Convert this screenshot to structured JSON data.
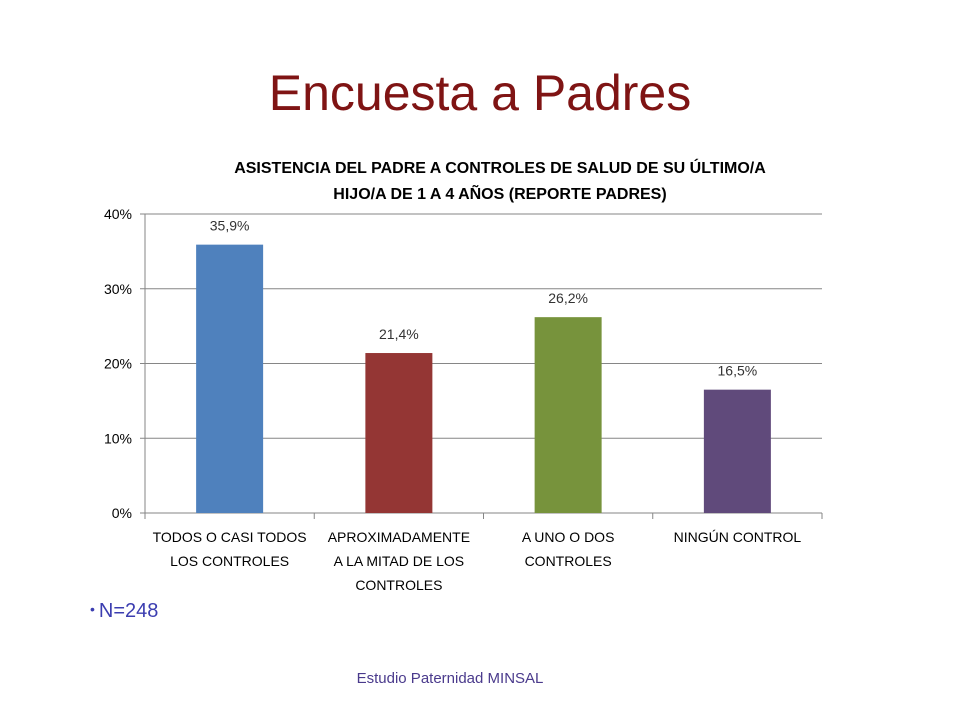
{
  "slide": {
    "title": "Encuesta a Padres",
    "bullet": "N=248",
    "footer": "Estudio Paternidad MINSAL"
  },
  "chart_data": {
    "type": "bar",
    "title_lines": [
      "ASISTENCIA DEL PADRE A CONTROLES DE SALUD DE SU ÚLTIMO/A",
      "HIJO/A  DE 1 A 4 AÑOS (REPORTE PADRES)"
    ],
    "categories": [
      [
        "TODOS O CASI TODOS",
        "LOS CONTROLES"
      ],
      [
        "APROXIMADAMENTE",
        "A LA MITAD DE LOS",
        "CONTROLES"
      ],
      [
        "A UNO O DOS",
        "CONTROLES"
      ],
      [
        "NINGÚN CONTROL"
      ]
    ],
    "values": [
      35.9,
      21.4,
      26.2,
      16.5
    ],
    "data_labels": [
      "35,9%",
      "21,4%",
      "26,2%",
      "16,5%"
    ],
    "bar_colors": [
      "#4f81bd",
      "#943634",
      "#77933c",
      "#604a7b"
    ],
    "y_ticks": [
      {
        "value": 0,
        "label": "0%"
      },
      {
        "value": 10,
        "label": "10%"
      },
      {
        "value": 20,
        "label": "20%"
      },
      {
        "value": 30,
        "label": "30%"
      },
      {
        "value": 40,
        "label": "40%"
      }
    ],
    "ylim": [
      0,
      40
    ],
    "grid": true,
    "legend": "none"
  }
}
